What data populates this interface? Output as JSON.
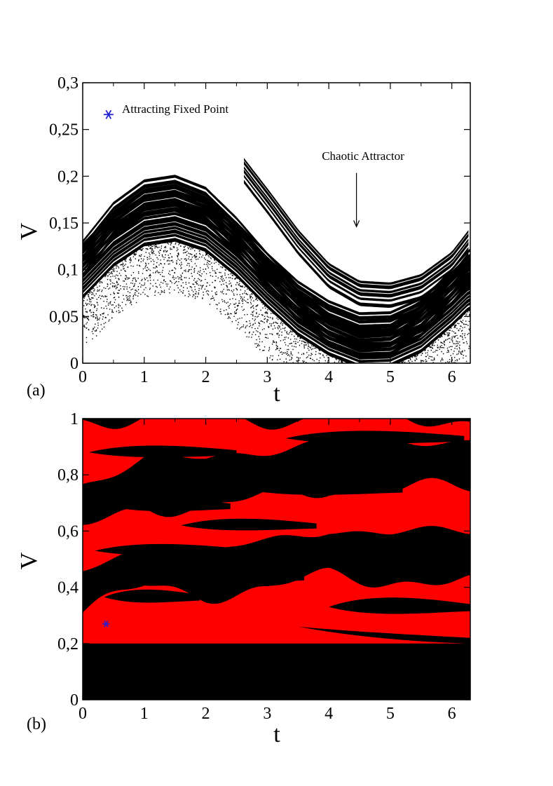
{
  "chart_data": [
    {
      "panel_label": "(a)",
      "type": "scatter",
      "title": "",
      "xlabel": "t",
      "ylabel": "V",
      "xlim": [
        0,
        6.3
      ],
      "ylim": [
        0,
        0.3
      ],
      "x_ticks": [
        0,
        1,
        2,
        3,
        4,
        5,
        6
      ],
      "x_tick_labels": [
        "0",
        "1",
        "2",
        "3",
        "4",
        "5",
        "6"
      ],
      "y_ticks": [
        0,
        0.05,
        0.1,
        0.15,
        0.2,
        0.25,
        0.3
      ],
      "y_tick_labels": [
        "0",
        "0,05",
        "0,1",
        "0,15",
        "0,2",
        "0,25",
        "0,3"
      ],
      "grid": false,
      "points_color": "#000000",
      "fixed_point": {
        "label": "Attracting Fixed Point",
        "t": 0.42,
        "V": 0.266,
        "color": "#1f1fd6"
      },
      "arrow_annotation": {
        "label": "Chaotic Attractor",
        "text_t": 4.45,
        "text_V": 0.22,
        "tip_t": 4.45,
        "tip_V": 0.146
      },
      "series": [
        {
          "values": [
            [
              0.0,
              0.13
            ],
            [
              0.5,
              0.171
            ],
            [
              1.0,
              0.195
            ],
            [
              1.5,
              0.2
            ],
            [
              2.0,
              0.187
            ],
            [
              2.5,
              0.155
            ],
            [
              3.0,
              0.117
            ],
            [
              3.5,
              0.083
            ],
            [
              4.0,
              0.058
            ],
            [
              4.5,
              0.044
            ],
            [
              5.0,
              0.046
            ],
            [
              5.5,
              0.066
            ],
            [
              6.0,
              0.1
            ],
            [
              6.28,
              0.121
            ]
          ]
        },
        {
          "values": [
            [
              0.0,
              0.092
            ],
            [
              0.5,
              0.126
            ],
            [
              1.0,
              0.148
            ],
            [
              1.5,
              0.153
            ],
            [
              2.0,
              0.142
            ],
            [
              2.5,
              0.115
            ],
            [
              3.0,
              0.082
            ],
            [
              3.5,
              0.052
            ],
            [
              4.0,
              0.031
            ],
            [
              4.5,
              0.018
            ],
            [
              5.0,
              0.019
            ],
            [
              5.5,
              0.034
            ],
            [
              6.0,
              0.062
            ],
            [
              6.28,
              0.08
            ]
          ]
        },
        {
          "values": [
            [
              2.6,
              0.22
            ],
            [
              3.0,
              0.186
            ],
            [
              3.5,
              0.142
            ],
            [
              4.0,
              0.106
            ],
            [
              4.5,
              0.087
            ],
            [
              5.0,
              0.085
            ],
            [
              5.5,
              0.094
            ],
            [
              6.0,
              0.118
            ],
            [
              6.28,
              0.142
            ]
          ]
        }
      ]
    },
    {
      "panel_label": "(b)",
      "type": "heatmap",
      "title": "",
      "xlabel": "t",
      "ylabel": "V",
      "xlim": [
        0,
        6.3
      ],
      "ylim": [
        0,
        1
      ],
      "x_ticks": [
        0,
        1,
        2,
        3,
        4,
        5,
        6
      ],
      "x_tick_labels": [
        "0",
        "1",
        "2",
        "3",
        "4",
        "5",
        "6"
      ],
      "y_ticks": [
        0,
        0.2,
        0.4,
        0.6,
        0.8,
        1
      ],
      "y_tick_labels": [
        "0",
        "0,2",
        "0,4",
        "0,6",
        "0,8",
        "1"
      ],
      "grid": false,
      "colors": {
        "basin_a": "#ff0000",
        "basin_b": "#000000"
      },
      "fixed_point": {
        "t": 0.38,
        "V": 0.27,
        "color": "#1f1fd6"
      },
      "series": [
        {
          "values": [
            [
              0,
              0.2
            ],
            [
              1,
              0.2
            ],
            [
              2,
              0.2
            ],
            [
              3,
              0.2
            ],
            [
              4,
              0.2
            ],
            [
              5,
              0.2
            ],
            [
              6.3,
              0.2
            ]
          ]
        },
        {
          "values": [
            [
              0,
              0.31
            ],
            [
              1,
              0.4
            ],
            [
              2,
              0.38
            ],
            [
              3,
              0.39
            ],
            [
              4,
              0.44
            ],
            [
              5,
              0.43
            ],
            [
              6.3,
              0.41
            ]
          ]
        },
        {
          "values": [
            [
              0,
              0.45
            ],
            [
              1,
              0.55
            ],
            [
              2,
              0.52
            ],
            [
              3,
              0.56
            ],
            [
              4,
              0.61
            ],
            [
              5,
              0.59
            ],
            [
              6.3,
              0.6
            ]
          ]
        },
        {
          "values": [
            [
              0,
              0.61
            ],
            [
              1,
              0.7
            ],
            [
              2,
              0.67
            ],
            [
              3,
              0.72
            ],
            [
              4,
              0.76
            ],
            [
              5,
              0.74
            ],
            [
              6.3,
              0.76
            ]
          ]
        },
        {
          "values": [
            [
              0,
              0.77
            ],
            [
              1,
              0.86
            ],
            [
              2,
              0.85
            ],
            [
              3,
              0.89
            ],
            [
              4,
              0.93
            ],
            [
              5,
              0.91
            ],
            [
              6.3,
              0.93
            ]
          ]
        }
      ]
    }
  ]
}
